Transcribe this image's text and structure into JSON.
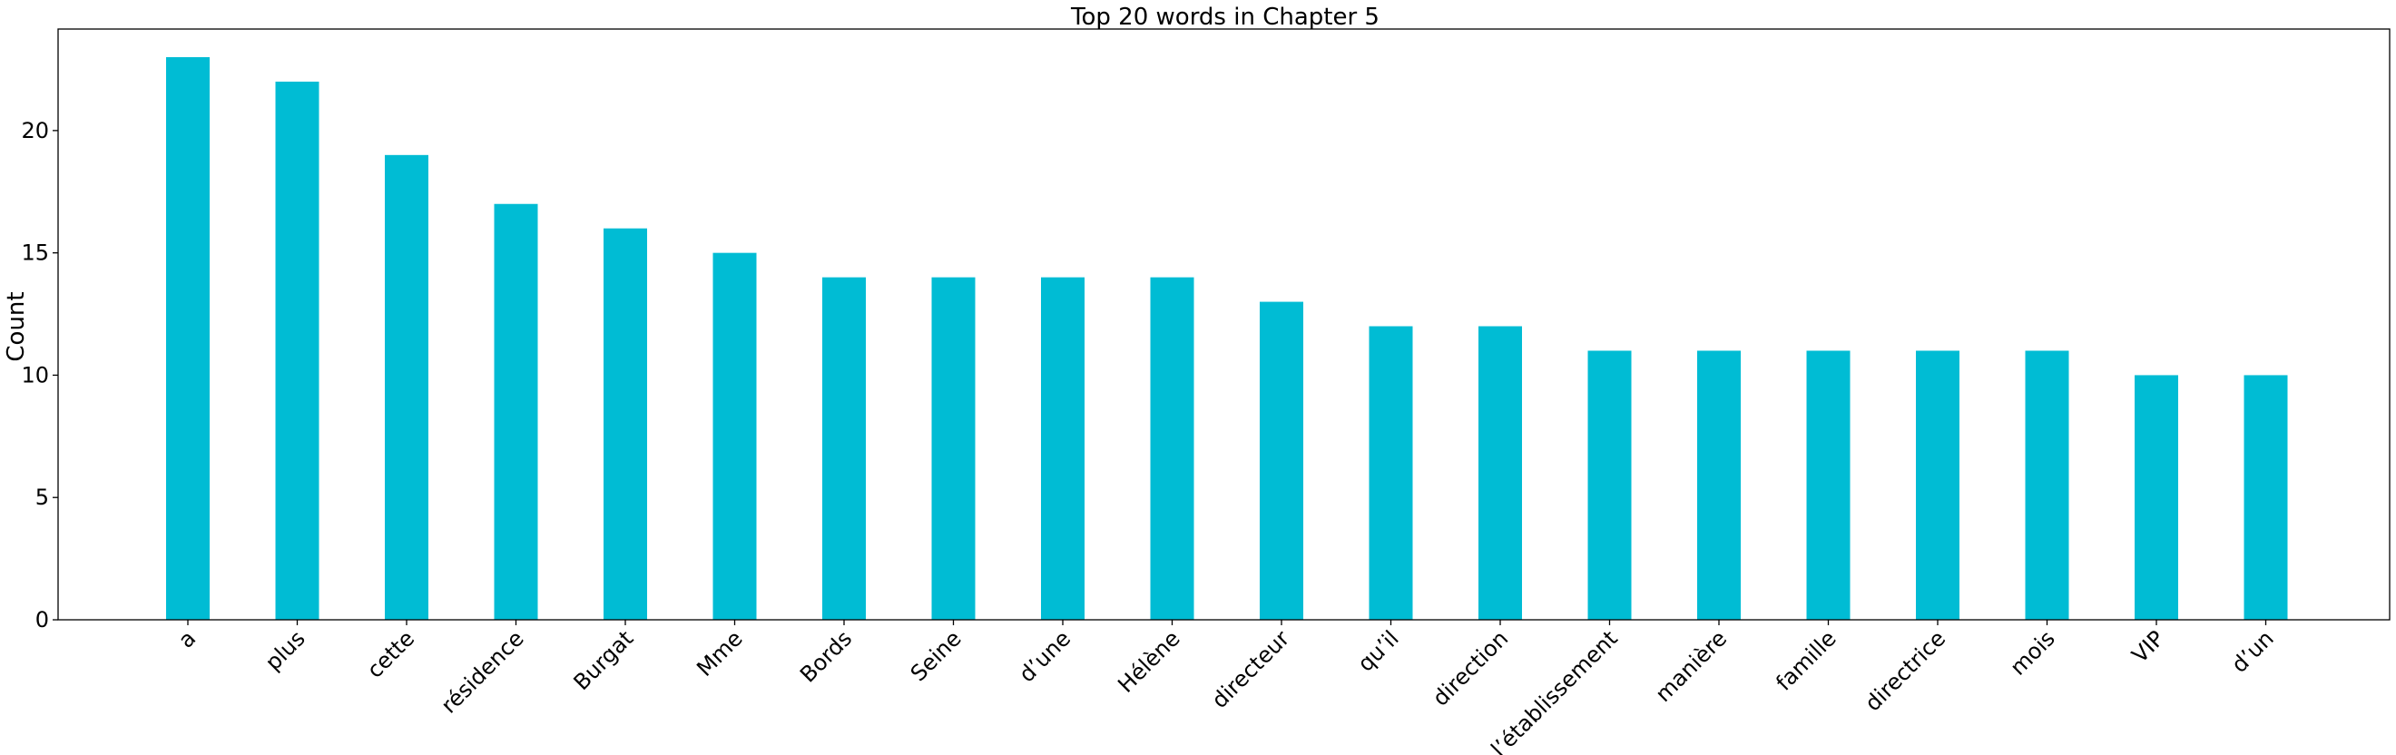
{
  "chart_data": {
    "type": "bar",
    "title": "Top 20 words in Chapter 5",
    "xlabel": "",
    "ylabel": "Count",
    "categories": [
      "a",
      "plus",
      "cette",
      "résidence",
      "Burgat",
      "Mme",
      "Bords",
      "Seine",
      "d’une",
      "Hélène",
      "directeur",
      "qu’il",
      "direction",
      "l’établissement",
      "manière",
      "famille",
      "directrice",
      "mois",
      "VIP",
      "d’un"
    ],
    "values": [
      23,
      22,
      19,
      17,
      16,
      15,
      14,
      14,
      14,
      14,
      13,
      12,
      12,
      11,
      11,
      11,
      11,
      11,
      10,
      10
    ],
    "yticks": [
      0,
      5,
      10,
      15,
      20
    ],
    "ylim": [
      0,
      24.15
    ],
    "bar_color": "#00bcd4",
    "grid": false,
    "legend": "none"
  }
}
